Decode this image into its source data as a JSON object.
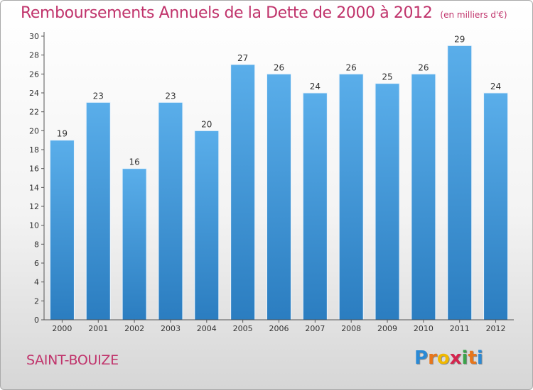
{
  "title": "Remboursements Annuels de la Dette de 2000 à 2012",
  "unit_note": "(en milliers d'€)",
  "commune": "SAINT-BOUIZE",
  "logo": {
    "letters": [
      "P",
      "r",
      "o",
      "x",
      "i",
      "t",
      "i"
    ],
    "colors": [
      "#2a8ad6",
      "#e8761b",
      "#f0b800",
      "#d4254e",
      "#3aa34a",
      "#e8761b",
      "#2a8ad6"
    ]
  },
  "colors": {
    "bar_light": "#5aaeea",
    "bar_dark": "#2b7dc0",
    "title": "#c0336b",
    "axis": "#555555"
  },
  "chart_data": {
    "type": "bar",
    "categories": [
      "2000",
      "2001",
      "2002",
      "2003",
      "2004",
      "2005",
      "2006",
      "2007",
      "2008",
      "2009",
      "2010",
      "2011",
      "2012"
    ],
    "values": [
      19,
      23,
      16,
      23,
      20,
      27,
      26,
      24,
      26,
      25,
      26,
      29,
      24
    ],
    "ylim": [
      0,
      30
    ],
    "yticks": [
      0,
      2,
      4,
      6,
      8,
      10,
      12,
      14,
      16,
      18,
      20,
      22,
      24,
      26,
      28,
      30
    ],
    "grid": false,
    "legend": "none"
  }
}
